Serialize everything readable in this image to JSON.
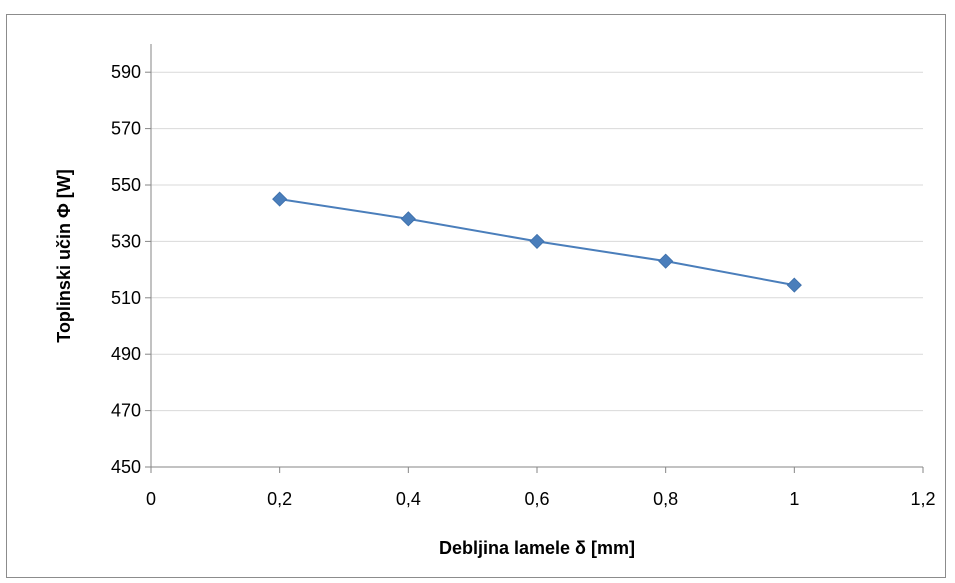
{
  "chart_data": {
    "type": "scatter",
    "xlabel": "Debljina lamele  δ [mm]",
    "ylabel": "Toplinski učin   Φ   [W]",
    "xlim": [
      0,
      1.2
    ],
    "ylim": [
      450,
      600
    ],
    "x_ticks": [
      "0",
      "0,2",
      "0,4",
      "0,6",
      "0,8",
      "1",
      "1,2"
    ],
    "y_ticks": [
      "450",
      "470",
      "490",
      "510",
      "530",
      "550",
      "570",
      "590"
    ],
    "grid": "horizontal",
    "line_color": "#4a7ebb",
    "marker": "diamond",
    "series": [
      {
        "x": [
          0.2,
          0.4,
          0.6,
          0.8,
          1.0
        ],
        "y": [
          545,
          538,
          530,
          523,
          514.5
        ]
      }
    ]
  }
}
